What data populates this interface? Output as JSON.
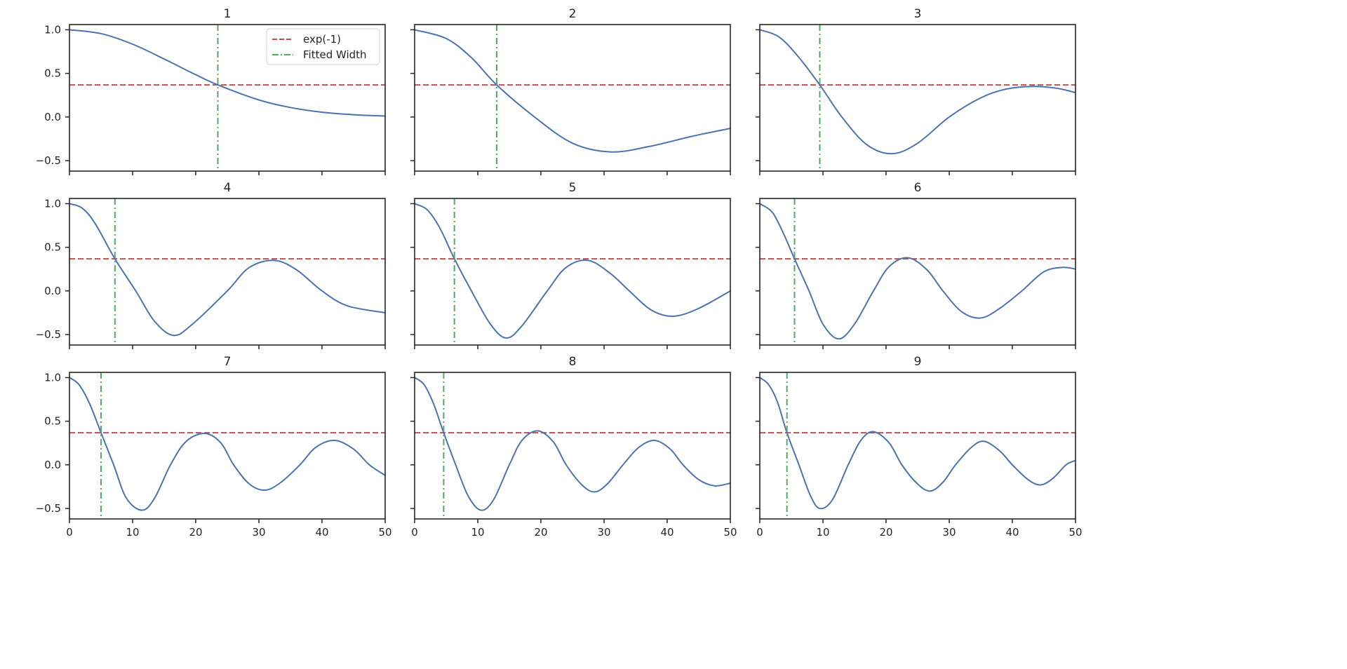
{
  "colors": {
    "curve": "#4c72b0",
    "threshold": "#c44e52",
    "width": "#55a868",
    "axis": "#262626"
  },
  "legend": {
    "placement": "top-right",
    "panel": 0,
    "entries": [
      {
        "label": "exp(-1)",
        "style": "dashed",
        "color": "#c44e52"
      },
      {
        "label": "Fitted Width",
        "style": "dash-dot",
        "color": "#55a868"
      }
    ]
  },
  "chart_data": {
    "type": "line",
    "layout": "3x3 grid, shared axes",
    "xlim": [
      0,
      50
    ],
    "ylim": [
      -0.62,
      1.06
    ],
    "xticks": [
      0,
      10,
      20,
      30,
      40,
      50
    ],
    "xtick_labels": [
      "0",
      "10",
      "20",
      "30",
      "40",
      "50"
    ],
    "yticks": [
      -0.5,
      0.0,
      0.5,
      1.0
    ],
    "ytick_labels": [
      "−0.5",
      "0.0",
      "0.5",
      "1.0"
    ],
    "threshold": 0.368,
    "grid": false,
    "panels": [
      {
        "title": "1",
        "fitted_width": 23.5,
        "x": [
          0,
          5,
          10,
          15,
          20,
          23.5,
          30,
          35,
          40,
          45,
          50
        ],
        "y": [
          1,
          0.956,
          0.835,
          0.665,
          0.485,
          0.368,
          0.196,
          0.109,
          0.055,
          0.026,
          0.011
        ]
      },
      {
        "title": "2",
        "fitted_width": 13.0,
        "x": [
          0,
          5,
          9,
          13,
          19,
          25,
          31,
          37,
          44,
          50
        ],
        "y": [
          1,
          0.9,
          0.68,
          0.368,
          0,
          -0.3,
          -0.4,
          -0.34,
          -0.22,
          -0.13
        ]
      },
      {
        "title": "3",
        "fitted_width": 9.5,
        "x": [
          0,
          3,
          6,
          9.5,
          13,
          17,
          21,
          25,
          30,
          35,
          39,
          43,
          47,
          50
        ],
        "y": [
          1,
          0.92,
          0.7,
          0.368,
          0,
          -0.32,
          -0.42,
          -0.3,
          0,
          0.22,
          0.32,
          0.35,
          0.33,
          0.28
        ]
      },
      {
        "title": "4",
        "fitted_width": 7.2,
        "x": [
          0,
          2,
          4,
          7.2,
          10.5,
          13.5,
          16.5,
          19.5,
          25,
          28.5,
          32.5,
          36,
          40,
          44,
          50
        ],
        "y": [
          1,
          0.95,
          0.78,
          0.368,
          0,
          -0.35,
          -0.51,
          -0.38,
          0,
          0.27,
          0.35,
          0.24,
          0,
          -0.17,
          -0.25
        ]
      },
      {
        "title": "5",
        "fitted_width": 6.3,
        "x": [
          0,
          2,
          4,
          6.3,
          9,
          12,
          14.5,
          17,
          21,
          24,
          27.5,
          31,
          34,
          37.5,
          41,
          45,
          50
        ],
        "y": [
          1,
          0.93,
          0.72,
          0.368,
          0,
          -0.38,
          -0.54,
          -0.4,
          0,
          0.27,
          0.35,
          0.2,
          0,
          -0.22,
          -0.29,
          -0.2,
          0
        ]
      },
      {
        "title": "6",
        "fitted_width": 5.5,
        "x": [
          0,
          2,
          3.8,
          5.5,
          7.8,
          10,
          12.5,
          15,
          18,
          20.5,
          23.5,
          26.5,
          29,
          32,
          35,
          38,
          41.5,
          45,
          48,
          50
        ],
        "y": [
          1,
          0.9,
          0.65,
          0.368,
          0,
          -0.38,
          -0.55,
          -0.38,
          0,
          0.28,
          0.38,
          0.24,
          0,
          -0.24,
          -0.31,
          -0.2,
          0,
          0.22,
          0.27,
          0.25
        ]
      },
      {
        "title": "7",
        "fitted_width": 5.0,
        "x": [
          0,
          1.5,
          3.2,
          5,
          7,
          9,
          11.5,
          13.5,
          16,
          18.5,
          21.5,
          24,
          26,
          28.5,
          31,
          33.5,
          36.5,
          39,
          42,
          45,
          47.5,
          50
        ],
        "y": [
          1,
          0.92,
          0.7,
          0.368,
          0,
          -0.38,
          -0.52,
          -0.38,
          0,
          0.27,
          0.36,
          0.25,
          0,
          -0.22,
          -0.29,
          -0.2,
          0,
          0.2,
          0.28,
          0.18,
          0,
          -0.12
        ]
      },
      {
        "title": "8",
        "fitted_width": 4.6,
        "x": [
          0,
          1.5,
          3,
          4.6,
          6.5,
          8.5,
          10.5,
          12.5,
          15,
          17,
          19.5,
          22,
          24,
          26.5,
          28.5,
          30.5,
          33,
          35.5,
          38,
          40.5,
          42.5,
          45,
          47.5,
          50
        ],
        "y": [
          1,
          0.92,
          0.7,
          0.368,
          0,
          -0.36,
          -0.52,
          -0.4,
          0,
          0.28,
          0.39,
          0.26,
          0,
          -0.23,
          -0.31,
          -0.22,
          0,
          0.2,
          0.28,
          0.18,
          0,
          -0.17,
          -0.24,
          -0.21
        ]
      },
      {
        "title": "9",
        "fitted_width": 4.3,
        "x": [
          0,
          1.4,
          2.8,
          4.3,
          6.2,
          8,
          9.5,
          11.5,
          14,
          16,
          18,
          20.5,
          22.5,
          25,
          27,
          29,
          31,
          33.5,
          35.5,
          38,
          40,
          42.5,
          44.5,
          46.5,
          48.5,
          50
        ],
        "y": [
          1,
          0.92,
          0.72,
          0.368,
          0,
          -0.35,
          -0.5,
          -0.4,
          0,
          0.28,
          0.38,
          0.25,
          0,
          -0.22,
          -0.3,
          -0.2,
          0,
          0.2,
          0.27,
          0.16,
          0,
          -0.17,
          -0.23,
          -0.15,
          0,
          0.05
        ]
      }
    ]
  }
}
